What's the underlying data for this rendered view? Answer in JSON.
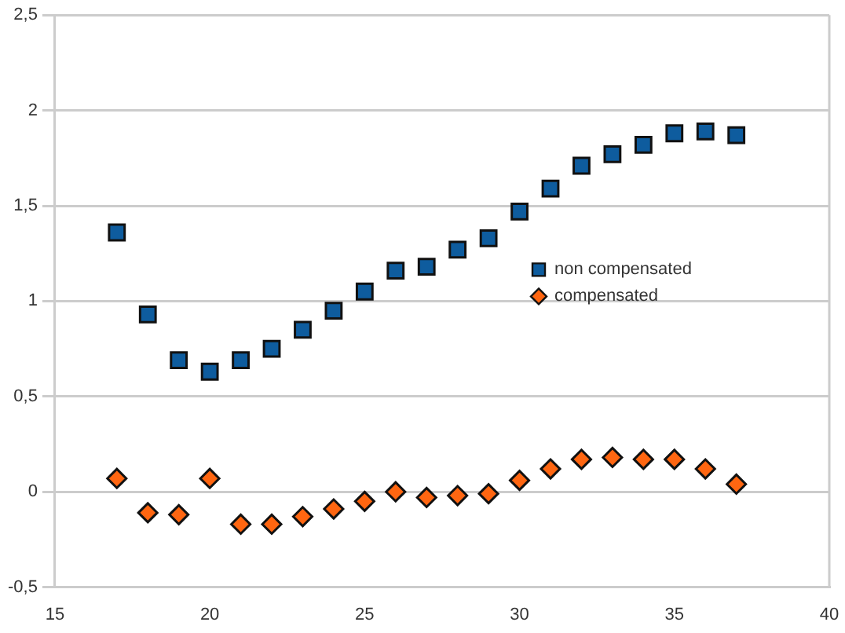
{
  "chart_data": {
    "type": "scatter",
    "x": [
      17,
      18,
      19,
      20,
      21,
      22,
      23,
      24,
      25,
      26,
      27,
      28,
      29,
      30,
      31,
      32,
      33,
      34,
      35,
      36,
      37
    ],
    "series": [
      {
        "name": "non compensated",
        "color": "#0e5c9e",
        "marker": "square",
        "values": [
          1.36,
          0.93,
          0.69,
          0.63,
          0.69,
          0.75,
          0.85,
          0.95,
          1.05,
          1.16,
          1.18,
          1.27,
          1.33,
          1.47,
          1.59,
          1.71,
          1.77,
          1.82,
          1.88,
          1.89,
          1.87
        ]
      },
      {
        "name": "compensated",
        "color": "#ff6611",
        "marker": "diamond",
        "values": [
          0.07,
          -0.11,
          -0.12,
          0.07,
          -0.17,
          -0.17,
          -0.13,
          -0.09,
          -0.05,
          0.0,
          -0.03,
          -0.02,
          -0.01,
          0.06,
          0.12,
          0.17,
          0.18,
          0.17,
          0.17,
          0.12,
          0.04
        ]
      }
    ],
    "xlim": [
      15,
      40
    ],
    "xticks": [
      15,
      20,
      25,
      30,
      35,
      40
    ],
    "ylim": [
      -0.5,
      2.5
    ],
    "yticks": [
      {
        "value": -0.5,
        "label": "-0,5"
      },
      0,
      {
        "value": 0.5,
        "label": "0,5"
      },
      1,
      {
        "value": 1.5,
        "label": "1,5"
      },
      2,
      {
        "value": 2.5,
        "label": "2,5"
      }
    ],
    "grid": "y",
    "legend": "right"
  }
}
